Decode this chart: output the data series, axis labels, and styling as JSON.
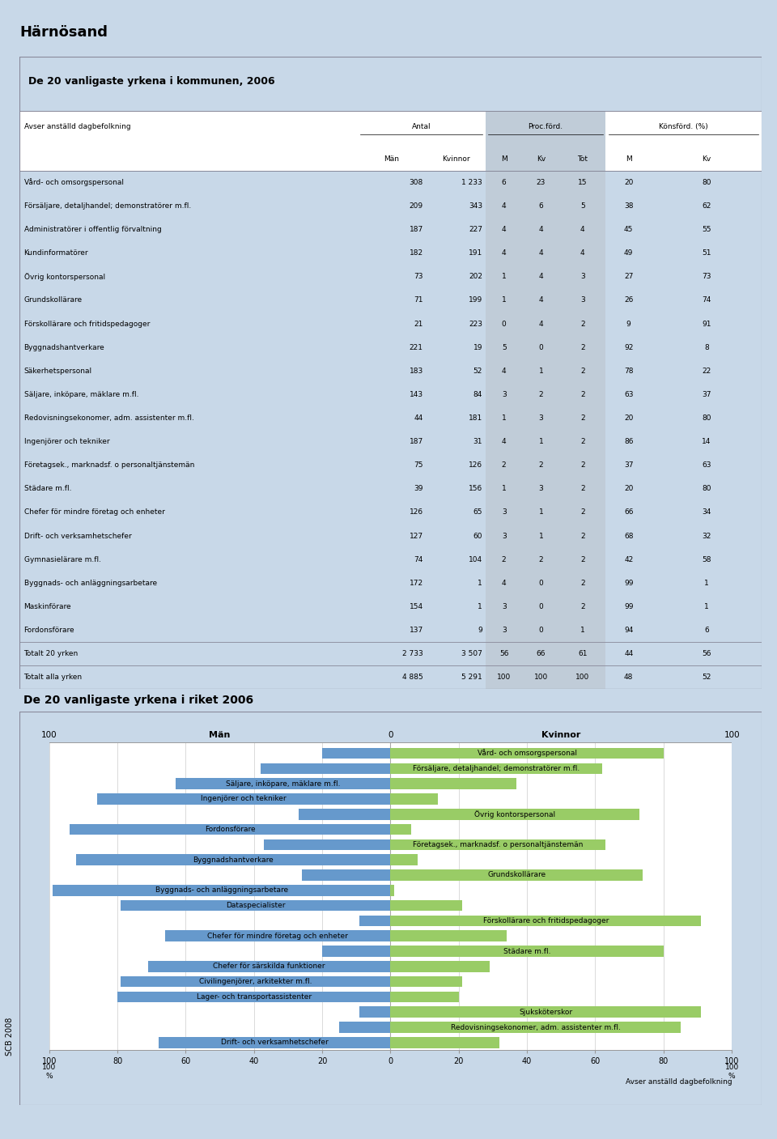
{
  "title": "Härnösand",
  "table_title": "De 20 vanligaste yrkena i kommunen, 2006",
  "chart_title": "De 20 vanligaste yrkena i riket 2006",
  "table_rows": [
    [
      "Vård- och omsorgspersonal",
      "308",
      "1 233",
      "6",
      "23",
      "15",
      "20",
      "80"
    ],
    [
      "Försäljare, detaljhandel; demonstratörer m.fl.",
      "209",
      "343",
      "4",
      "6",
      "5",
      "38",
      "62"
    ],
    [
      "Administratörer i offentlig förvaltning",
      "187",
      "227",
      "4",
      "4",
      "4",
      "45",
      "55"
    ],
    [
      "Kundinformatörer",
      "182",
      "191",
      "4",
      "4",
      "4",
      "49",
      "51"
    ],
    [
      "Övrig kontorspersonal",
      "73",
      "202",
      "1",
      "4",
      "3",
      "27",
      "73"
    ],
    [
      "Grundskollärare",
      "71",
      "199",
      "1",
      "4",
      "3",
      "26",
      "74"
    ],
    [
      "Förskollärare och fritidspedagoger",
      "21",
      "223",
      "0",
      "4",
      "2",
      "9",
      "91"
    ],
    [
      "Byggnadshantverkare",
      "221",
      "19",
      "5",
      "0",
      "2",
      "92",
      "8"
    ],
    [
      "Säkerhetspersonal",
      "183",
      "52",
      "4",
      "1",
      "2",
      "78",
      "22"
    ],
    [
      "Säljare, inköpare, mäklare m.fl.",
      "143",
      "84",
      "3",
      "2",
      "2",
      "63",
      "37"
    ],
    [
      "Redovisningsekonomer, adm. assistenter m.fl.",
      "44",
      "181",
      "1",
      "3",
      "2",
      "20",
      "80"
    ],
    [
      "Ingenjörer och tekniker",
      "187",
      "31",
      "4",
      "1",
      "2",
      "86",
      "14"
    ],
    [
      "Företagsek., marknadsf. o personaltjänstemän",
      "75",
      "126",
      "2",
      "2",
      "2",
      "37",
      "63"
    ],
    [
      "Städare m.fl.",
      "39",
      "156",
      "1",
      "3",
      "2",
      "20",
      "80"
    ],
    [
      "Chefer för mindre företag och enheter",
      "126",
      "65",
      "3",
      "1",
      "2",
      "66",
      "34"
    ],
    [
      "Drift- och verksamhetschefer",
      "127",
      "60",
      "3",
      "1",
      "2",
      "68",
      "32"
    ],
    [
      "Gymnasielärare m.fl.",
      "74",
      "104",
      "2",
      "2",
      "2",
      "42",
      "58"
    ],
    [
      "Byggnads- och anläggningsarbetare",
      "172",
      "1",
      "4",
      "0",
      "2",
      "99",
      "1"
    ],
    [
      "Maskinförare",
      "154",
      "1",
      "3",
      "0",
      "2",
      "99",
      "1"
    ],
    [
      "Fordonsförare",
      "137",
      "9",
      "3",
      "0",
      "1",
      "94",
      "6"
    ],
    [
      "Totalt 20 yrken",
      "2 733",
      "3 507",
      "56",
      "66",
      "61",
      "44",
      "56"
    ],
    [
      "Totalt alla yrken",
      "4 885",
      "5 291",
      "100",
      "100",
      "100",
      "48",
      "52"
    ]
  ],
  "bar_data": [
    {
      "label": "Vård- och omsorgspersonal",
      "men": 20,
      "women": 80
    },
    {
      "label": "Försäljare, detaljhandel; demonstratörer m.fl.",
      "men": 38,
      "women": 62
    },
    {
      "label": "Säljare, inköpare, mäklare m.fl.",
      "men": 63,
      "women": 37
    },
    {
      "label": "Ingenjörer och tekniker",
      "men": 86,
      "women": 14
    },
    {
      "label": "Övrig kontorspersonal",
      "men": 27,
      "women": 73
    },
    {
      "label": "Fordonsförare",
      "men": 94,
      "women": 6
    },
    {
      "label": "Företagsek., marknadsf. o personaltjänstemän",
      "men": 37,
      "women": 63
    },
    {
      "label": "Byggnadshantverkare",
      "men": 92,
      "women": 8
    },
    {
      "label": "Grundskollärare",
      "men": 26,
      "women": 74
    },
    {
      "label": "Byggnads- och anläggningsarbetare",
      "men": 99,
      "women": 1
    },
    {
      "label": "Dataspecialister",
      "men": 79,
      "women": 21
    },
    {
      "label": "Förskollärare och fritidspedagoger",
      "men": 9,
      "women": 91
    },
    {
      "label": "Chefer för mindre företag och enheter",
      "men": 66,
      "women": 34
    },
    {
      "label": "Städare m.fl.",
      "men": 20,
      "women": 80
    },
    {
      "label": "Chefer för särskilda funktioner",
      "men": 71,
      "women": 29
    },
    {
      "label": "Civilingenjörer, arkitekter m.fl.",
      "men": 79,
      "women": 21
    },
    {
      "label": "Lager- och transportassistenter",
      "men": 80,
      "women": 20
    },
    {
      "label": "Sjuksköterskor",
      "men": 9,
      "women": 91
    },
    {
      "label": "Redovisningsekonomer, adm. assistenter m.fl.",
      "men": 15,
      "women": 85
    },
    {
      "label": "Drift- och verksamhetschefer",
      "men": 68,
      "women": 32
    }
  ],
  "men_color": "#6699cc",
  "women_color": "#99cc66",
  "outer_bg": "#c8d8e8",
  "panel_bg": "#dce8f4",
  "white": "#ffffff",
  "gray_col_bg": "#c0ccd8",
  "border_color": "#888899"
}
